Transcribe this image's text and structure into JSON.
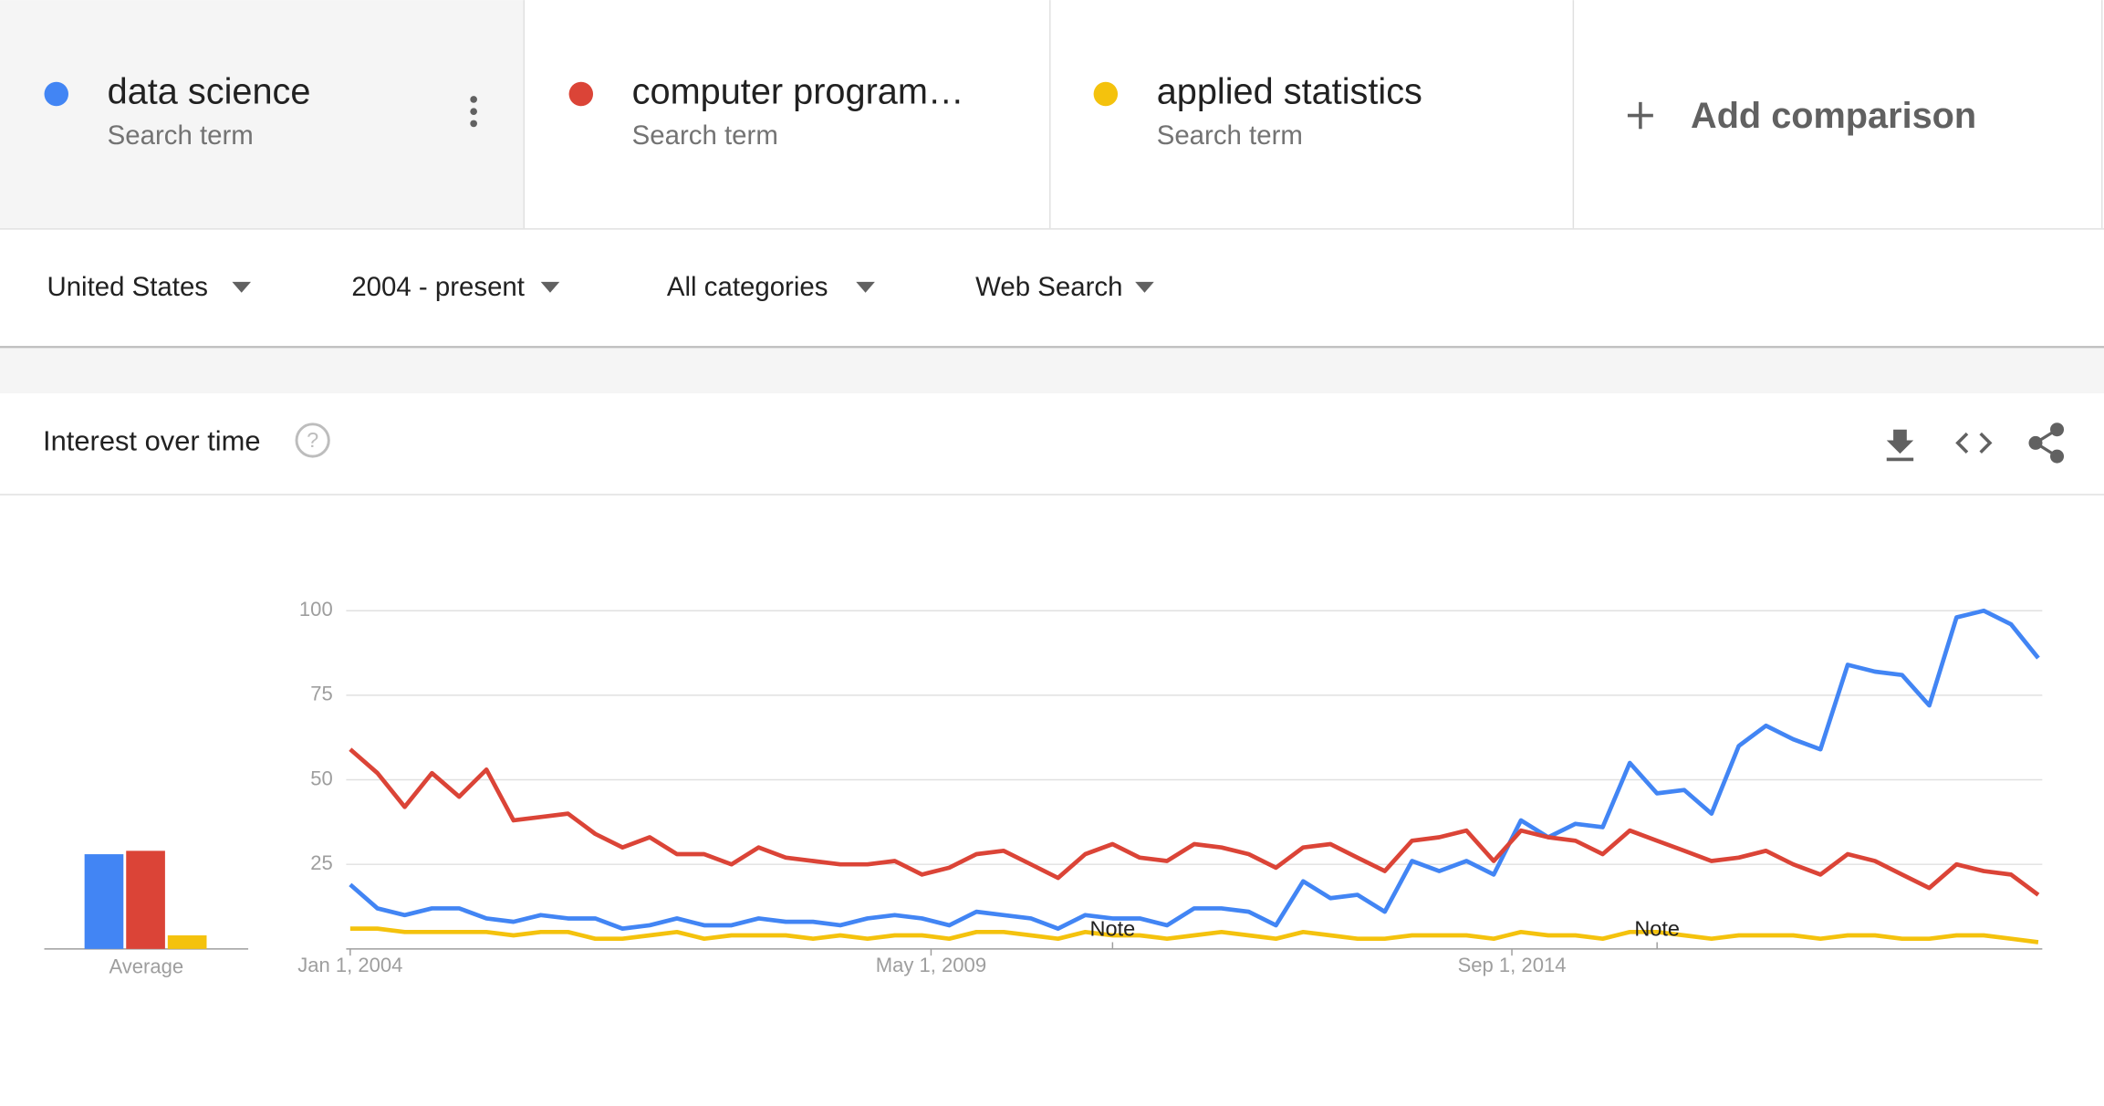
{
  "search_terms": [
    {
      "subtitle": "Search term"
    },
    {
      "subtitle": "Search term"
    },
    {
      "subtitle": "Search term"
    }
  ],
  "add_comparison": "Add comparison",
  "filters": [
    "United States",
    "2004 - present",
    "All categories",
    "Web Search"
  ],
  "section_title": "Interest over time",
  "chart_data": {
    "type": "line",
    "x": [
      "2004-01",
      "2004-04",
      "2004-07",
      "2004-10",
      "2005-01",
      "2005-04",
      "2005-07",
      "2005-10",
      "2006-01",
      "2006-04",
      "2006-07",
      "2006-10",
      "2007-01",
      "2007-04",
      "2007-07",
      "2007-10",
      "2008-01",
      "2008-04",
      "2008-07",
      "2008-10",
      "2009-01",
      "2009-04",
      "2009-07",
      "2009-10",
      "2010-01",
      "2010-04",
      "2010-07",
      "2010-10",
      "2011-01",
      "2011-04",
      "2011-07",
      "2011-10",
      "2012-01",
      "2012-04",
      "2012-07",
      "2012-10",
      "2013-01",
      "2013-04",
      "2013-07",
      "2013-10",
      "2014-01",
      "2014-04",
      "2014-07",
      "2014-10",
      "2015-01",
      "2015-04",
      "2015-07",
      "2015-10",
      "2016-01",
      "2016-04",
      "2016-07",
      "2016-10",
      "2017-01",
      "2017-04",
      "2017-07",
      "2017-10",
      "2018-01",
      "2018-04",
      "2018-07",
      "2018-10",
      "2019-01",
      "2019-04",
      "2019-07"
    ],
    "series": [
      {
        "name": "data science",
        "color": "#4285f4",
        "average": 28,
        "values": [
          19,
          12,
          10,
          12,
          12,
          9,
          8,
          10,
          9,
          9,
          6,
          7,
          9,
          7,
          7,
          9,
          8,
          8,
          7,
          9,
          10,
          9,
          7,
          11,
          10,
          9,
          6,
          10,
          9,
          9,
          7,
          12,
          12,
          11,
          7,
          20,
          15,
          16,
          11,
          26,
          23,
          26,
          22,
          38,
          33,
          37,
          36,
          55,
          46,
          47,
          40,
          60,
          66,
          62,
          59,
          84,
          82,
          81,
          72,
          98,
          100,
          96,
          86
        ]
      },
      {
        "name": "computer program…",
        "color": "#db4437",
        "average": 29,
        "values": [
          59,
          52,
          42,
          52,
          45,
          53,
          38,
          39,
          40,
          34,
          30,
          33,
          28,
          28,
          25,
          30,
          27,
          26,
          25,
          25,
          26,
          22,
          24,
          28,
          29,
          25,
          21,
          28,
          31,
          27,
          26,
          31,
          30,
          28,
          24,
          30,
          31,
          27,
          23,
          32,
          33,
          35,
          26,
          35,
          33,
          32,
          28,
          35,
          32,
          29,
          26,
          27,
          29,
          25,
          22,
          28,
          26,
          22,
          18,
          25,
          23,
          22,
          16
        ]
      },
      {
        "name": "applied statistics",
        "color": "#f4c20d",
        "average": 4,
        "values": [
          6,
          6,
          5,
          5,
          5,
          5,
          4,
          5,
          5,
          3,
          3,
          4,
          5,
          3,
          4,
          4,
          4,
          3,
          4,
          3,
          4,
          4,
          3,
          5,
          5,
          4,
          3,
          5,
          4,
          4,
          3,
          4,
          5,
          4,
          3,
          5,
          4,
          3,
          3,
          4,
          4,
          4,
          3,
          5,
          4,
          4,
          3,
          5,
          5,
          4,
          3,
          4,
          4,
          4,
          3,
          4,
          4,
          3,
          3,
          4,
          4,
          3,
          2
        ]
      }
    ],
    "average_label": "Average",
    "xlim": [
      "2004-01",
      "2019-07"
    ],
    "xticks": [
      {
        "value": "2004-01",
        "label": "Jan 1, 2004"
      },
      {
        "value": "2009-05",
        "label": "May 1, 2009"
      },
      {
        "value": "2014-09",
        "label": "Sep 1, 2014"
      }
    ],
    "ylim": [
      0,
      100
    ],
    "yticks": [
      25,
      50,
      75,
      100
    ],
    "grid": true,
    "annotations": [
      {
        "x": "2011-01",
        "label": "Note"
      },
      {
        "x": "2016-01",
        "label": "Note"
      }
    ]
  }
}
